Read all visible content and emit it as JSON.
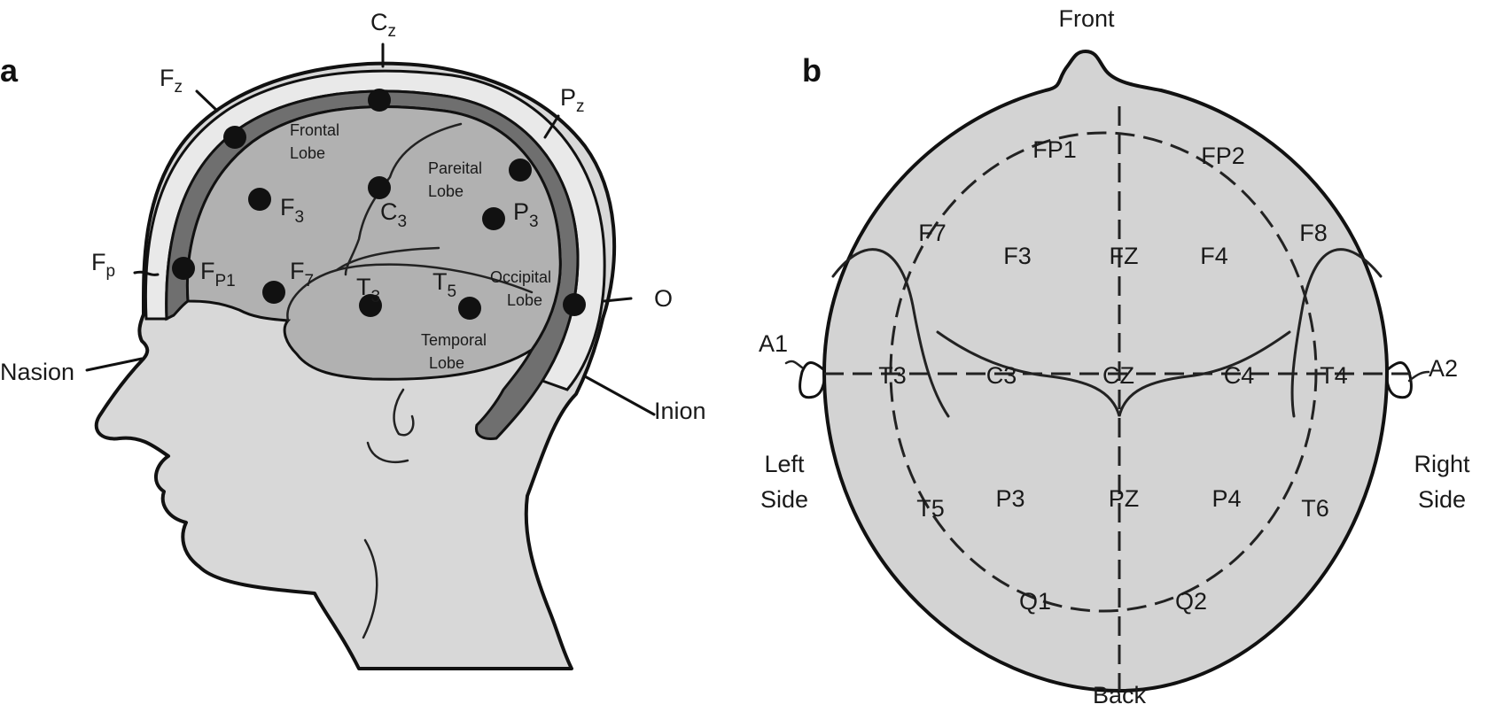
{
  "colors": {
    "skin": "#d8d8d8",
    "skull_outer": "#e9e9e9",
    "skull_inner": "#6f6f6f",
    "brain": "#b1b1b1",
    "head_b": "#d3d3d3",
    "electrode": "#111111",
    "line": "#111111"
  },
  "panel_a": {
    "panel_label": "a",
    "landmarks": {
      "cz": {
        "main": "C",
        "sub": "z"
      },
      "fz": {
        "main": "F",
        "sub": "z"
      },
      "pz": {
        "main": "P",
        "sub": "z"
      },
      "fp": {
        "main": "F",
        "sub": "p"
      },
      "o": "O",
      "nasion": "Nasion",
      "inion": "Inion"
    },
    "lobes": {
      "frontal": [
        "Frontal",
        "Lobe"
      ],
      "parietal": [
        "Pareital",
        "Lobe"
      ],
      "occipital": [
        "Occipital",
        "Lobe"
      ],
      "temporal": [
        "Temporal",
        "Lobe"
      ]
    },
    "electrodes": {
      "f3": {
        "main": "F",
        "sub": "3"
      },
      "c3": {
        "main": "C",
        "sub": "3"
      },
      "p3": {
        "main": "P",
        "sub": "3"
      },
      "fp1": {
        "main": "F",
        "sub": "P1"
      },
      "f7": {
        "main": "F",
        "sub": "7"
      },
      "t3": {
        "main": "T",
        "sub": "3"
      },
      "t5": {
        "main": "T",
        "sub": "5"
      }
    },
    "electrode_icon": "filled-circle"
  },
  "panel_b": {
    "panel_label": "b",
    "orientation": {
      "front": "Front",
      "back": "Back",
      "left": [
        "Left",
        "Side"
      ],
      "right": [
        "Right",
        "Side"
      ],
      "a1": "A1",
      "a2": "A2"
    },
    "electrodes": {
      "fp1": "FP1",
      "fp2": "FP2",
      "f7": "F7",
      "f3": "F3",
      "fz": "FZ",
      "f4": "F4",
      "f8": "F8",
      "t3": "T3",
      "c3": "C3",
      "cz": "CZ",
      "c4": "C4",
      "t4": "T4",
      "t5": "T5",
      "p3": "P3",
      "pz": "PZ",
      "p4": "P4",
      "t6": "T6",
      "q1": "Q1",
      "q2": "Q2"
    }
  }
}
